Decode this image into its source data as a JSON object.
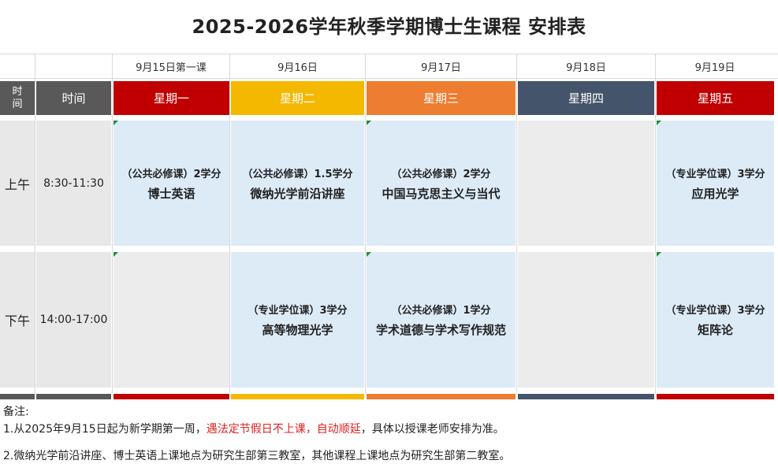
{
  "title": "2025-2026学年秋季学期博士生课程 安排表",
  "dates": [
    "9月15日第一课",
    "9月16日",
    "9月17日",
    "9月18日",
    "9月19日"
  ],
  "header": {
    "time_short": "时\n间",
    "time_label": "时间",
    "days": [
      "星期一",
      "星期二",
      "星期三",
      "星期四",
      "星期五"
    ]
  },
  "colors": {
    "monday": "#c00000",
    "tuesday": "#f5b800",
    "wednesday": "#ed7d31",
    "thursday": "#44546a",
    "friday": "#c00000",
    "time_header": "#595959",
    "course_bg": "#ddebf7",
    "empty_bg": "#ececec",
    "highlight": "#e02020"
  },
  "rows": [
    {
      "period": "上午",
      "time": "8:30-11:30",
      "cells": [
        {
          "type": "（公共必修课）2学分",
          "name": "博士英语"
        },
        {
          "type": "（公共必修课）1.5学分",
          "name": "微纳光学前沿讲座"
        },
        {
          "type": "（公共必修课）2学分",
          "name": "中国马克思主义与当代"
        },
        {
          "type": "",
          "name": ""
        },
        {
          "type": "（专业学位课）3学分",
          "name": "应用光学"
        }
      ]
    },
    {
      "period": "下午",
      "time": "14:00-17:00",
      "cells": [
        {
          "type": "",
          "name": ""
        },
        {
          "type": "（专业学位课）3学分",
          "name": "高等物理光学"
        },
        {
          "type": "（公共必修课）1学分",
          "name": "学术道德与学术写作规范"
        },
        {
          "type": "",
          "name": ""
        },
        {
          "type": "（专业学位课）3学分",
          "name": "矩阵论"
        }
      ]
    }
  ],
  "notes": {
    "heading": "备注:",
    "line1_a": "1.从2025年9月15日起为新学期第一周，",
    "line1_b": "遇法定节假日不上课，自动顺延",
    "line1_c": "，具体以授课老师安排为准。",
    "line2": "2.微纳光学前沿讲座、博士英语上课地点为研究生部第三教室，其他课程上课地点为研究生部第二教室。"
  }
}
